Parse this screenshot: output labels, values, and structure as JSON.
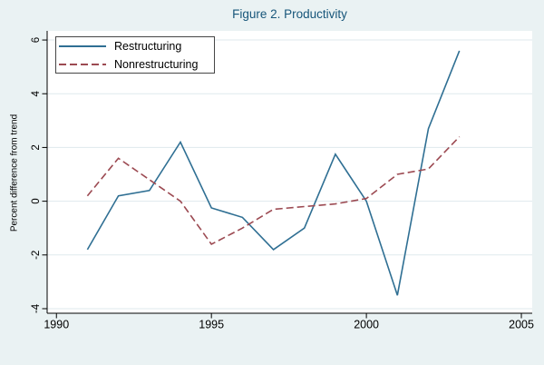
{
  "title": {
    "text": "Figure 2. Productivity",
    "color": "#17567a"
  },
  "legend": {
    "items": [
      {
        "label": "Restructuring",
        "style": "solid",
        "color": "#2f6f93"
      },
      {
        "label": "Nonrestructuring",
        "style": "dashed",
        "color": "#9c4a52"
      }
    ]
  },
  "axes": {
    "y_title": "Percent difference from trend",
    "x_tick_labels": [
      "1990",
      "1995",
      "2000",
      "2005"
    ],
    "y_tick_labels": [
      "-4",
      "-2",
      "0",
      "2",
      "4",
      "6"
    ]
  },
  "colors": {
    "background": "#eaf2f3",
    "plot_background": "#ffffff",
    "gridline": "#dfeaed",
    "axis": "#000000",
    "title": "#17567a",
    "restructuring_line": "#2f6f93",
    "nonrestructuring_line": "#9c4a52"
  },
  "chart_data": {
    "type": "line",
    "title": "Figure 2. Productivity",
    "xlabel": "",
    "ylabel": "Percent difference from trend",
    "x": [
      1991,
      1992,
      1993,
      1994,
      1995,
      1996,
      1997,
      1998,
      1999,
      2000,
      2001,
      2002,
      2003
    ],
    "series": [
      {
        "name": "Restructuring",
        "color": "#2f6f93",
        "line_style": "solid",
        "values": [
          -1.8,
          0.2,
          0.4,
          2.2,
          -0.25,
          -0.6,
          -1.8,
          -1.0,
          1.75,
          0.0,
          -3.5,
          2.7,
          5.6
        ]
      },
      {
        "name": "Nonrestructuring",
        "color": "#9c4a52",
        "line_style": "dashed",
        "values": [
          0.2,
          1.6,
          0.8,
          0.0,
          -1.6,
          -1.0,
          -0.3,
          -0.2,
          -0.1,
          0.1,
          1.0,
          1.2,
          2.4
        ]
      }
    ],
    "xlim": [
      1989.7,
      2005.35
    ],
    "ylim": [
      -4.17,
      6.34
    ],
    "xticks": [
      1990,
      1995,
      2000,
      2005
    ],
    "yticks": [
      -4,
      -2,
      0,
      2,
      4,
      6
    ],
    "grid": "horizontal",
    "y_tick_label_rotation": -90,
    "legend_position": "top-left-inside"
  }
}
